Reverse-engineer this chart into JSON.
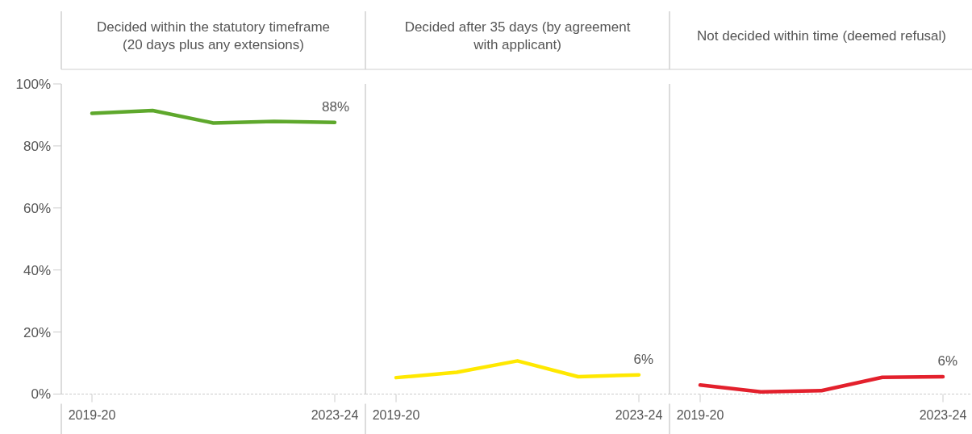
{
  "chart_data": [
    {
      "type": "line",
      "title": "Decided within the statutory timeframe\n(20 days plus any extensions)",
      "categories": [
        "2019-20",
        null,
        null,
        null,
        "2023-24"
      ],
      "series": [
        {
          "color": "#5ea82c",
          "values": [
            90.5,
            91.4,
            87.4,
            87.9,
            87.6
          ],
          "value_labels": [
            null,
            null,
            null,
            null,
            "88%"
          ]
        }
      ],
      "ylim": [
        0,
        100
      ],
      "yticks": [
        {
          "value": 0,
          "label": "0%"
        },
        {
          "value": 20,
          "label": "20%"
        },
        {
          "value": 40,
          "label": "40%"
        },
        {
          "value": 60,
          "label": "60%"
        },
        {
          "value": 80,
          "label": "80%"
        },
        {
          "value": 100,
          "label": "100%"
        }
      ]
    },
    {
      "type": "line",
      "title": "Decided after 35 days (by agreement\nwith applicant)",
      "categories": [
        "2019-20",
        null,
        null,
        null,
        "2023-24"
      ],
      "series": [
        {
          "color": "#ffe800",
          "values": [
            5.3,
            7.0,
            10.7,
            5.6,
            6.2
          ],
          "value_labels": [
            null,
            null,
            null,
            null,
            "6%"
          ]
        }
      ],
      "ylim": [
        0,
        100
      ],
      "tick_labels": "x"
    },
    {
      "type": "line",
      "title": "Not decided within time (deemed refusal)",
      "categories": [
        "2019-20",
        null,
        null,
        null,
        "2023-24"
      ],
      "series": [
        {
          "color": "#e3202c",
          "values": [
            2.9,
            0.7,
            1.1,
            5.4,
            5.6
          ],
          "value_labels": [
            null,
            null,
            null,
            null,
            "6%"
          ]
        }
      ],
      "ylim": [
        0,
        100
      ],
      "tick_labels": "x"
    }
  ]
}
